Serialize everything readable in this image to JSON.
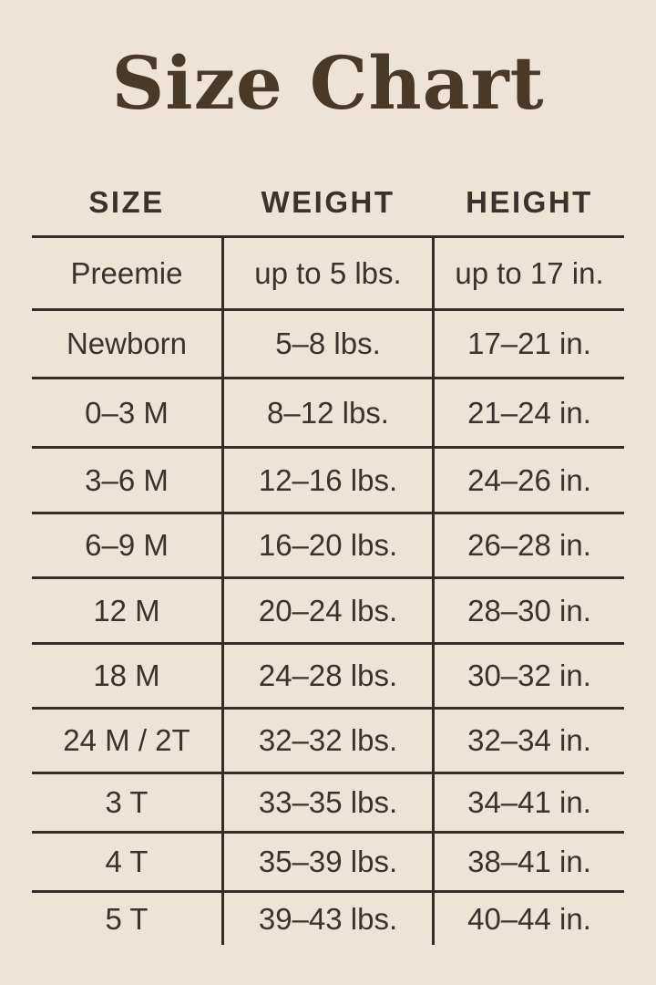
{
  "colors": {
    "background": "#EDE4D6",
    "body_text": "#3A332B",
    "title_text": "#493927",
    "line": "#332D26"
  },
  "chart_data": {
    "type": "table",
    "title": "Size Chart",
    "columns": [
      "SIZE",
      "WEIGHT",
      "HEIGHT"
    ],
    "rows": [
      {
        "size": "Preemie",
        "weight": "up to 5 lbs.",
        "height": "up to 17 in."
      },
      {
        "size": "Newborn",
        "weight": "5–8 lbs.",
        "height": "17–21 in."
      },
      {
        "size": "0–3 M",
        "weight": "8–12 lbs.",
        "height": "21–24 in."
      },
      {
        "size": "3–6 M",
        "weight": "12–16 lbs.",
        "height": "24–26 in."
      },
      {
        "size": "6–9 M",
        "weight": "16–20 lbs.",
        "height": "26–28 in."
      },
      {
        "size": "12 M",
        "weight": "20–24 lbs.",
        "height": "28–30 in."
      },
      {
        "size": "18 M",
        "weight": "24–28 lbs.",
        "height": "30–32 in."
      },
      {
        "size": "24 M / 2T",
        "weight": "32–32 lbs.",
        "height": "32–34 in."
      },
      {
        "size": "3 T",
        "weight": "33–35 lbs.",
        "height": "34–41 in."
      },
      {
        "size": "4 T",
        "weight": "35–39 lbs.",
        "height": "38–41 in."
      },
      {
        "size": "5 T",
        "weight": "39–43 lbs.",
        "height": "40–44 in."
      }
    ],
    "layout_hints": {
      "grid": "horizontal rules between rows, vertical dividers between columns only below header, no outer border, no bottom rule",
      "legend_position": "none"
    }
  }
}
